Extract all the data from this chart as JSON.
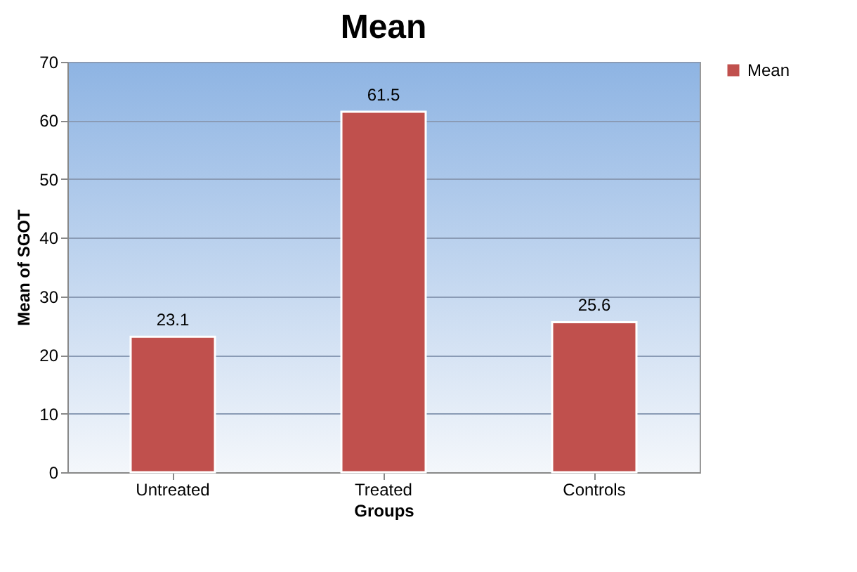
{
  "chart_data": {
    "type": "bar",
    "title": "Mean",
    "xlabel": "Groups",
    "ylabel": "Mean of SGOT",
    "categories": [
      "Untreated",
      "Treated",
      "Controls"
    ],
    "series": [
      {
        "name": "Mean",
        "color": "#c0504d",
        "values": [
          23.1,
          61.5,
          25.6
        ]
      }
    ],
    "ylim": [
      0,
      70
    ],
    "yticks": [
      0,
      10,
      20,
      30,
      40,
      50,
      60,
      70
    ],
    "grid": "y",
    "legend": "right",
    "data_labels": true
  }
}
